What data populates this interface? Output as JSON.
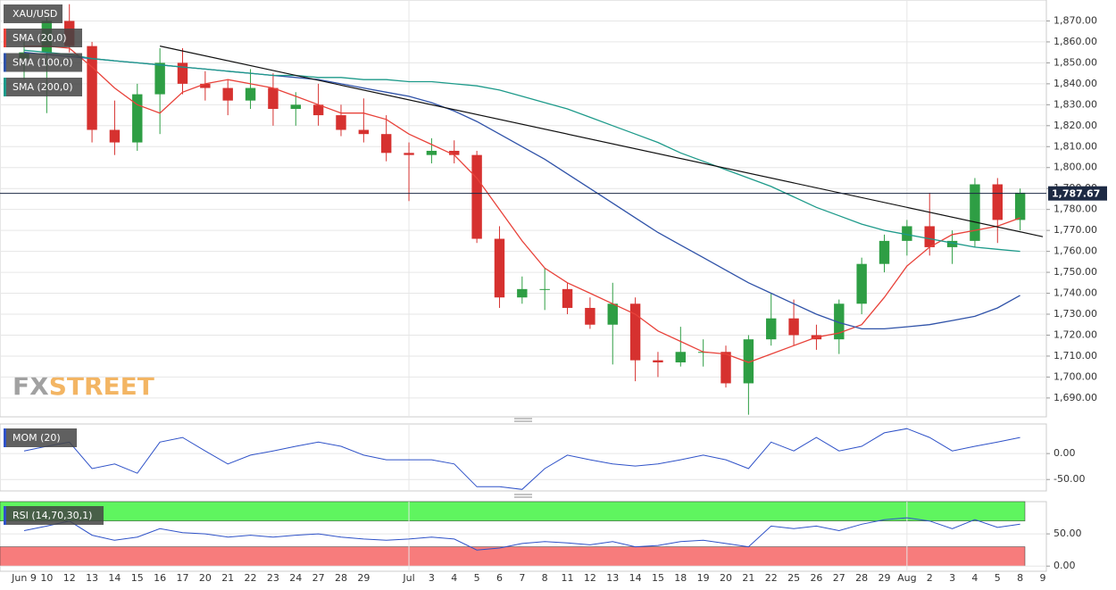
{
  "chart_data": [
    {
      "type": "candlestick",
      "title": "XAU/USD",
      "categories": [
        "Jun 9",
        "10",
        "12",
        "13",
        "14",
        "15",
        "16",
        "17",
        "20",
        "21",
        "22",
        "23",
        "24",
        "27",
        "28",
        "29",
        null,
        "Jul",
        "3",
        "4",
        "5",
        "6",
        "7",
        "8",
        "11",
        "12",
        "13",
        "14",
        "15",
        "18",
        "19",
        "20",
        "21",
        "22",
        "25",
        "26",
        "27",
        "28",
        "29",
        "Aug",
        "2",
        "3",
        "4",
        "5",
        "8",
        "9"
      ],
      "open": [
        1852,
        1855,
        1870,
        1858,
        1818,
        1812,
        1835,
        1850,
        1840,
        1838,
        1832,
        1838,
        1828,
        1830,
        1825,
        1818,
        1816,
        1807,
        1806,
        1808,
        1806,
        1766,
        1738,
        1742,
        1742,
        1733,
        1725,
        1735,
        1708,
        1707,
        1712,
        1712,
        1697,
        1718,
        1728,
        1720,
        1718,
        1735,
        1754,
        1765,
        1772,
        1762,
        1765,
        1792,
        1775,
        null
      ],
      "high": [
        1860,
        1872,
        1878,
        1860,
        1832,
        1840,
        1857,
        1857,
        1846,
        1842,
        1847,
        1845,
        1836,
        1840,
        1830,
        1833,
        1825,
        1812,
        1814,
        1813,
        1808,
        1772,
        1748,
        1752,
        1745,
        1738,
        1745,
        1738,
        1712,
        1724,
        1718,
        1715,
        1720,
        1740,
        1737,
        1725,
        1737,
        1757,
        1768,
        1775,
        1788,
        1770,
        1795,
        1795,
        1790,
        null
      ],
      "low": [
        1842,
        1826,
        1855,
        1812,
        1806,
        1808,
        1816,
        1835,
        1832,
        1825,
        1828,
        1820,
        1820,
        1820,
        1815,
        1812,
        1803,
        1784,
        1802,
        1802,
        1764,
        1733,
        1735,
        1732,
        1730,
        1723,
        1706,
        1698,
        1700,
        1705,
        1705,
        1695,
        1682,
        1715,
        1715,
        1713,
        1711,
        1730,
        1750,
        1758,
        1758,
        1754,
        1762,
        1764,
        1770,
        null
      ],
      "close": [
        1855,
        1870,
        1858,
        1818,
        1812,
        1835,
        1850,
        1840,
        1838,
        1832,
        1838,
        1828,
        1830,
        1825,
        1818,
        1816,
        1807,
        1806,
        1808,
        1806,
        1766,
        1738,
        1742,
        1742,
        1733,
        1725,
        1735,
        1708,
        1707,
        1712,
        1712,
        1697,
        1718,
        1728,
        1720,
        1718,
        1735,
        1754,
        1765,
        1772,
        1762,
        1765,
        1792,
        1775,
        1788,
        null
      ],
      "up_color": "#2e9e44",
      "down_color": "#d6312f",
      "series": [
        {
          "name": "SMA (20,0)",
          "color": "#e8423a",
          "values": [
            1858,
            1858,
            1857,
            1848,
            1838,
            1830,
            1826,
            1836,
            1840,
            1842,
            1840,
            1838,
            1834,
            1830,
            1826,
            1826,
            1823,
            1816,
            1811,
            1806,
            1795,
            1780,
            1765,
            1752,
            1745,
            1740,
            1735,
            1730,
            1722,
            1717,
            1712,
            1711,
            1707,
            1711,
            1715,
            1719,
            1721,
            1725,
            1738,
            1753,
            1762,
            1768,
            1770,
            1772,
            1776,
            null
          ]
        },
        {
          "name": "SMA (100,0)",
          "color": "#2f52a8",
          "values": [
            1855,
            1854,
            1853,
            1852,
            1851,
            1850,
            1849,
            1848,
            1847,
            1846,
            1845,
            1844,
            1843,
            1842,
            1840,
            1838,
            1836,
            1834,
            1831,
            1827,
            1822,
            1816,
            1810,
            1804,
            1797,
            1790,
            1783,
            1776,
            1769,
            1763,
            1757,
            1751,
            1745,
            1740,
            1735,
            1730,
            1726,
            1723,
            1723,
            1724,
            1725,
            1727,
            1729,
            1733,
            1739,
            null
          ]
        },
        {
          "name": "SMA (200,0)",
          "color": "#1d9a8a",
          "values": [
            1856,
            1855,
            1854,
            1852,
            1851,
            1850,
            1849,
            1848,
            1847,
            1846,
            1845,
            1844,
            1844,
            1843,
            1843,
            1842,
            1842,
            1841,
            1841,
            1840,
            1839,
            1837,
            1834,
            1831,
            1828,
            1824,
            1820,
            1816,
            1812,
            1807,
            1803,
            1799,
            1795,
            1791,
            1786,
            1781,
            1777,
            1773,
            1770,
            1768,
            1766,
            1764,
            1762,
            1761,
            1760,
            null
          ]
        }
      ],
      "trendline": {
        "from": "16",
        "to": "9",
        "values": [
          1858,
          1767
        ]
      },
      "last": {
        "value": 1787.67,
        "label": "1,787.67"
      },
      "ylim": [
        1681,
        1880
      ],
      "yticks": [
        {
          "value": 1690,
          "label": "1,690.00"
        },
        {
          "value": 1700,
          "label": "1,700.00"
        },
        {
          "value": 1710,
          "label": "1,710.00"
        },
        {
          "value": 1720,
          "label": "1,720.00"
        },
        {
          "value": 1730,
          "label": "1,730.00"
        },
        {
          "value": 1740,
          "label": "1,740.00"
        },
        {
          "value": 1750,
          "label": "1,750.00"
        },
        {
          "value": 1760,
          "label": "1,760.00"
        },
        {
          "value": 1770,
          "label": "1,770.00"
        },
        {
          "value": 1780,
          "label": "1,780.00"
        },
        {
          "value": 1790,
          "label": "1,790.00"
        },
        {
          "value": 1800,
          "label": "1,800.00"
        },
        {
          "value": 1810,
          "label": "1,810.00"
        },
        {
          "value": 1820,
          "label": "1,820.00"
        },
        {
          "value": 1830,
          "label": "1,830.00"
        },
        {
          "value": 1840,
          "label": "1,840.00"
        },
        {
          "value": 1850,
          "label": "1,850.00"
        },
        {
          "value": 1860,
          "label": "1,860.00"
        },
        {
          "value": 1870,
          "label": "1,870.00"
        }
      ],
      "grid": true,
      "watermark": [
        "FX",
        "STREET"
      ]
    },
    {
      "type": "line",
      "name": "MOM (20)",
      "color": "#2f52c8",
      "values": [
        5,
        14,
        22,
        -29,
        -20,
        -38,
        22,
        31,
        5,
        -20,
        -3,
        5,
        14,
        22,
        14,
        -3,
        -12,
        -12,
        -12,
        -20,
        -64,
        -64,
        -69,
        -29,
        -3,
        -12,
        -20,
        -24,
        -20,
        -12,
        -3,
        -12,
        -29,
        22,
        5,
        31,
        5,
        14,
        40,
        48,
        31,
        5,
        14,
        22,
        31,
        null
      ],
      "ylim": [
        -72,
        57
      ],
      "yticks": [
        {
          "value": 0,
          "label": "0.00"
        },
        {
          "value": -50,
          "label": "-50.00"
        }
      ]
    },
    {
      "type": "line",
      "name": "RSI (14,70,30,1)",
      "color": "#2f52c8",
      "values": [
        55,
        62,
        70,
        48,
        40,
        45,
        58,
        52,
        50,
        45,
        48,
        45,
        48,
        50,
        45,
        42,
        40,
        42,
        45,
        42,
        25,
        28,
        35,
        38,
        36,
        33,
        38,
        30,
        32,
        38,
        40,
        35,
        30,
        62,
        58,
        62,
        55,
        65,
        72,
        75,
        70,
        58,
        72,
        60,
        65,
        null
      ],
      "upper": 70,
      "lower": 30,
      "ylim": [
        -8,
        100
      ],
      "yticks": [
        {
          "value": 50,
          "label": "50.00"
        },
        {
          "value": 0,
          "label": "0.00"
        }
      ]
    }
  ]
}
